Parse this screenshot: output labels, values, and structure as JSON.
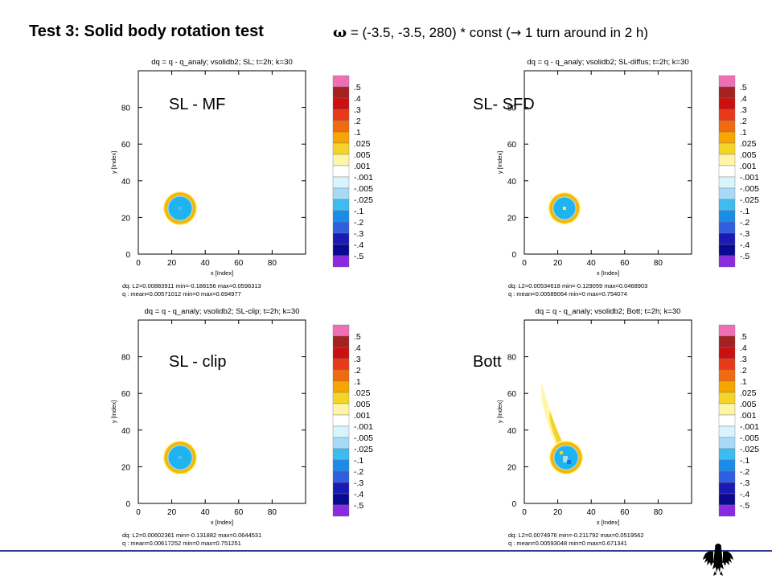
{
  "header": {
    "title": "Test 3: Solid body rotation test",
    "formula_symbol": "ω",
    "formula_text": " = (-3.5, -3.5, 280) * const  (",
    "formula_arrow": "→",
    "formula_tail": " 1 turn around in 2 h)"
  },
  "chart_data": [
    {
      "type": "heatmap",
      "title": "dq = q - q_analy; vsolidb2; SL; t=2h; k=30",
      "scheme_label": "SL - MF",
      "xlabel": "x [Index]",
      "ylabel": "y [Index]",
      "xlim": [
        0,
        100
      ],
      "ylim": [
        0,
        100
      ],
      "xticks": [
        0,
        20,
        40,
        60,
        80
      ],
      "yticks": [
        0,
        20,
        40,
        60,
        80
      ],
      "blob": {
        "cx": 25,
        "cy": 25,
        "r_outer": 9.5,
        "r_inner": 7,
        "core_color": "#1fb4f0",
        "ring_color": "#f7b700",
        "center_color": "#5bb9f2"
      },
      "stats_dq": "dq:  L2=0.00883911   min=-0.188156   max=0.0596313",
      "stats_q": "q :  mean=0.00571012   min=0   max=0.694977"
    },
    {
      "type": "heatmap",
      "title": "dq = q - q_analy; vsolidb2; SL-diffus; t=2h; k=30",
      "scheme_label": "SL- SFD",
      "xlabel": "x [Index]",
      "ylabel": "y [Index]",
      "xlim": [
        0,
        100
      ],
      "ylim": [
        0,
        100
      ],
      "xticks": [
        0,
        20,
        40,
        60,
        80
      ],
      "yticks": [
        0,
        20,
        40,
        60,
        80
      ],
      "blob": {
        "cx": 24,
        "cy": 25,
        "r_outer": 9,
        "r_inner": 6.5,
        "core_color": "#1fb4f0",
        "ring_color": "#f7b700",
        "center_color": "#ffe066"
      },
      "stats_dq": "dq:  L2=0.00534618   min=-0.129059   max=0.0468903",
      "stats_q": "q :  mean=0.00589064   min=0   max=0.754074"
    },
    {
      "type": "heatmap",
      "title": "dq = q - q_analy; vsolidb2; SL-clip; t=2h; k=30",
      "scheme_label": "SL - clip",
      "xlabel": "x [Index]",
      "ylabel": "y [Index]",
      "xlim": [
        0,
        100
      ],
      "ylim": [
        0,
        100
      ],
      "xticks": [
        0,
        20,
        40,
        60,
        80
      ],
      "yticks": [
        0,
        20,
        40,
        60,
        80
      ],
      "blob": {
        "cx": 25,
        "cy": 25,
        "r_outer": 9.5,
        "r_inner": 7,
        "core_color": "#1fb4f0",
        "ring_color": "#f7b700",
        "center_color": "#5bb9f2"
      },
      "stats_dq": "dq:  L2=0.00602361   min=-0.131882   max=0.0644531",
      "stats_q": "q :  mean=0.00617252   min=0   max=0.751251"
    },
    {
      "type": "heatmap",
      "title": "dq = q - q_analy; vsolidb2; Bott; t=2h; k=30",
      "scheme_label": "Bott",
      "xlabel": "x [Index]",
      "ylabel": "y [Index]",
      "xlim": [
        0,
        100
      ],
      "ylim": [
        0,
        100
      ],
      "xticks": [
        0,
        20,
        40,
        60,
        80
      ],
      "yticks": [
        0,
        20,
        40,
        60,
        80
      ],
      "blob": {
        "cx": 25,
        "cy": 25,
        "r_outer": 9.5,
        "r_inner": 7,
        "core_color": "#1fb4f0",
        "ring_color": "#f7b700",
        "center_color": "#1a73e8",
        "tail": true
      },
      "stats_dq": "dq:  L2=0.0074976   min=-0.211792   max=0.0519562",
      "stats_q": "q :  mean=0.00593048   min=0   max=0.671341"
    }
  ],
  "colorbar": {
    "labels": [
      ".5",
      ".4",
      ".3",
      ".2",
      ".1",
      ".025",
      ".005",
      ".001",
      "-.001",
      "-.005",
      "-.025",
      "-.1",
      "-.2",
      "-.3",
      "-.4",
      "-.5"
    ],
    "colors": [
      "#f06eb4",
      "#a52020",
      "#cc1010",
      "#e83a18",
      "#f26a10",
      "#f7a500",
      "#f5d42a",
      "#fff5a8",
      "#ffffff",
      "#d8f4fc",
      "#a8daf7",
      "#3cbcf0",
      "#1a8ce8",
      "#2f5fe0",
      "#1a1ab4",
      "#0a0a90",
      "#8a2be2"
    ]
  },
  "footer": {
    "emblem": "federal-eagle-icon",
    "line_color": "#2f3f8f"
  }
}
